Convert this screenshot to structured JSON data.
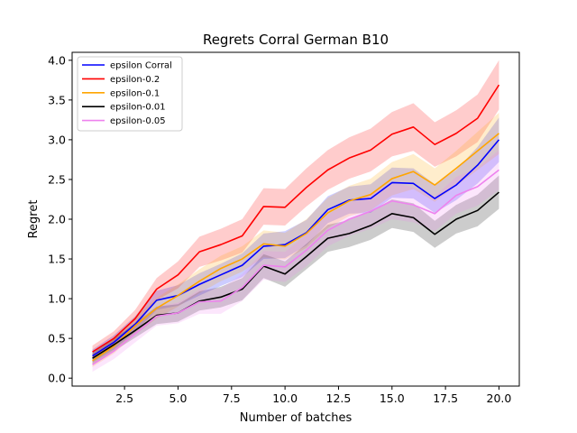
{
  "chart_data": {
    "type": "line",
    "title": "Regrets Corral German B10",
    "xlabel": "Number of batches",
    "ylabel": "Regret",
    "xlim": [
      0.05,
      20.95
    ],
    "ylim": [
      -0.1,
      4.1
    ],
    "xticks": [
      2.5,
      5.0,
      7.5,
      10.0,
      12.5,
      15.0,
      17.5,
      20.0
    ],
    "xtick_labels": [
      "2.5",
      "5.0",
      "7.5",
      "10.0",
      "12.5",
      "15.0",
      "17.5",
      "20.0"
    ],
    "yticks": [
      0.0,
      0.5,
      1.0,
      1.5,
      2.0,
      2.5,
      3.0,
      3.5,
      4.0
    ],
    "ytick_labels": [
      "0.0",
      "0.5",
      "1.0",
      "1.5",
      "2.0",
      "2.5",
      "3.0",
      "3.5",
      "4.0"
    ],
    "grid": false,
    "legend_position": "top-left",
    "x": [
      1,
      2,
      3,
      4,
      5,
      6,
      7,
      8,
      9,
      10,
      11,
      12,
      13,
      14,
      15,
      16,
      17,
      18,
      19,
      20
    ],
    "series": [
      {
        "name": "epsilon Corral",
        "color": "#0000ff",
        "values": [
          0.28,
          0.45,
          0.68,
          0.98,
          1.04,
          1.18,
          1.3,
          1.42,
          1.66,
          1.68,
          1.83,
          2.12,
          2.24,
          2.26,
          2.46,
          2.45,
          2.26,
          2.43,
          2.68,
          3.0
        ],
        "lower": [
          0.2,
          0.36,
          0.58,
          0.86,
          0.91,
          1.04,
          1.16,
          1.27,
          1.5,
          1.51,
          1.67,
          1.95,
          2.07,
          2.08,
          2.27,
          2.26,
          2.08,
          2.24,
          2.45,
          2.72
        ],
        "upper": [
          0.36,
          0.54,
          0.78,
          1.1,
          1.17,
          1.32,
          1.44,
          1.57,
          1.82,
          1.85,
          1.99,
          2.29,
          2.41,
          2.44,
          2.65,
          2.64,
          2.44,
          2.62,
          2.91,
          3.28
        ]
      },
      {
        "name": "epsilon-0.2",
        "color": "#ff0000",
        "values": [
          0.33,
          0.5,
          0.75,
          1.12,
          1.3,
          1.59,
          1.68,
          1.79,
          2.16,
          2.15,
          2.4,
          2.62,
          2.77,
          2.87,
          3.07,
          3.16,
          2.94,
          3.08,
          3.27,
          3.69
        ],
        "lower": [
          0.25,
          0.41,
          0.64,
          0.98,
          1.13,
          1.4,
          1.48,
          1.58,
          1.93,
          1.92,
          2.16,
          2.37,
          2.51,
          2.6,
          2.79,
          2.86,
          2.66,
          2.79,
          2.97,
          3.38
        ],
        "upper": [
          0.41,
          0.59,
          0.86,
          1.26,
          1.47,
          1.78,
          1.88,
          2.0,
          2.39,
          2.38,
          2.64,
          2.87,
          3.03,
          3.14,
          3.35,
          3.46,
          3.22,
          3.37,
          3.57,
          4.0
        ]
      },
      {
        "name": "epsilon-0.1",
        "color": "#ffa500",
        "values": [
          0.22,
          0.4,
          0.66,
          0.88,
          1.04,
          1.22,
          1.38,
          1.5,
          1.69,
          1.66,
          1.82,
          2.08,
          2.23,
          2.31,
          2.51,
          2.6,
          2.43,
          2.64,
          2.86,
          3.08
        ],
        "lower": [
          0.14,
          0.31,
          0.55,
          0.75,
          0.9,
          1.07,
          1.22,
          1.34,
          1.52,
          1.49,
          1.64,
          1.89,
          2.04,
          2.11,
          2.3,
          2.38,
          2.22,
          2.42,
          2.62,
          2.82
        ],
        "upper": [
          0.3,
          0.49,
          0.77,
          1.01,
          1.18,
          1.37,
          1.54,
          1.66,
          1.86,
          1.83,
          2.0,
          2.27,
          2.42,
          2.51,
          2.72,
          2.82,
          2.64,
          2.86,
          3.1,
          3.34
        ]
      },
      {
        "name": "epsilon-0.01",
        "color": "#000000",
        "values": [
          0.25,
          0.42,
          0.6,
          0.79,
          0.82,
          0.97,
          1.02,
          1.12,
          1.41,
          1.31,
          1.53,
          1.76,
          1.82,
          1.92,
          2.07,
          2.02,
          1.81,
          2.0,
          2.11,
          2.34
        ],
        "lower": [
          0.18,
          0.34,
          0.51,
          0.68,
          0.71,
          0.85,
          0.89,
          0.98,
          1.26,
          1.15,
          1.37,
          1.59,
          1.65,
          1.74,
          1.89,
          1.84,
          1.64,
          1.82,
          1.91,
          2.13
        ],
        "upper": [
          0.32,
          0.5,
          0.69,
          0.9,
          0.93,
          1.09,
          1.15,
          1.26,
          1.56,
          1.47,
          1.69,
          1.93,
          1.99,
          2.1,
          2.25,
          2.2,
          1.98,
          2.18,
          2.31,
          2.55
        ]
      },
      {
        "name": "epsilon-0.05",
        "color": "#ee82ee",
        "values": [
          0.17,
          0.34,
          0.56,
          0.78,
          0.82,
          0.96,
          0.97,
          1.14,
          1.42,
          1.4,
          1.61,
          1.86,
          2.0,
          2.1,
          2.23,
          2.18,
          2.07,
          2.3,
          2.41,
          2.62
        ],
        "lower": [
          0.08,
          0.24,
          0.45,
          0.66,
          0.69,
          0.81,
          0.81,
          0.97,
          1.24,
          1.21,
          1.41,
          1.66,
          1.79,
          1.88,
          2.0,
          1.96,
          1.85,
          2.07,
          2.17,
          2.37
        ],
        "upper": [
          0.26,
          0.44,
          0.67,
          0.9,
          0.95,
          1.11,
          1.13,
          1.31,
          1.6,
          1.59,
          1.81,
          2.06,
          2.21,
          2.32,
          2.46,
          2.4,
          2.29,
          2.53,
          2.65,
          2.87
        ]
      }
    ]
  }
}
